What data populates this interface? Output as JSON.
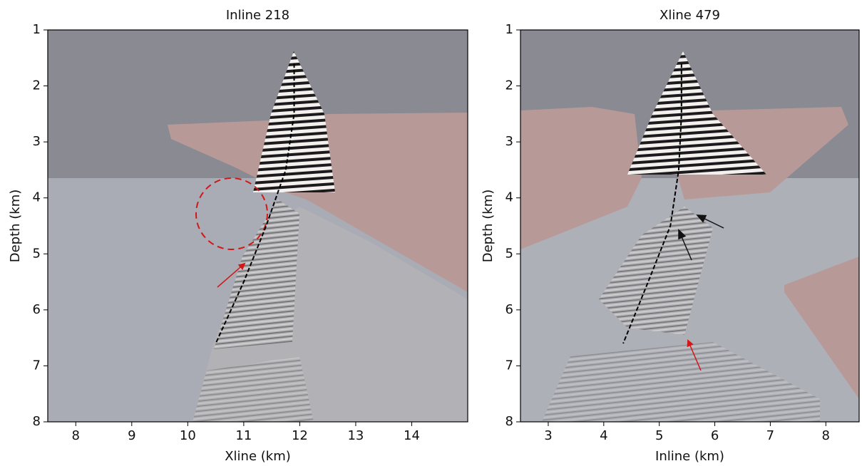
{
  "chart_data": [
    {
      "type": "image",
      "title": "Inline 218",
      "xlabel": "Xline (km)",
      "ylabel": "Depth (km)",
      "xlim": [
        7.5,
        15
      ],
      "ylim": [
        1,
        8
      ],
      "invert_y": true,
      "xticks": [
        8,
        9,
        10,
        11,
        12,
        13,
        14
      ],
      "yticks": [
        1,
        2,
        3,
        4,
        5,
        6,
        7,
        8
      ],
      "series": [
        {
          "color": "#000000",
          "dashed": true,
          "x": [
            11.9,
            11.9,
            11.75,
            11.4,
            11.0,
            10.5
          ],
          "values": [
            1.6,
            2.5,
            3.5,
            4.5,
            5.5,
            6.6
          ]
        }
      ]
    },
    {
      "type": "image",
      "title": "Xline 479",
      "xlabel": "Inline (km)",
      "ylabel": "Depth (km)",
      "xlim": [
        2.5,
        8.6
      ],
      "ylim": [
        1,
        8
      ],
      "invert_y": true,
      "xticks": [
        3,
        4,
        5,
        6,
        7,
        8
      ],
      "yticks": [
        1,
        2,
        3,
        4,
        5,
        6,
        7,
        8
      ],
      "series": [
        {
          "color": "#000000",
          "dashed": true,
          "x": [
            5.4,
            5.4,
            5.35,
            5.2,
            4.8,
            4.35
          ],
          "values": [
            1.6,
            2.5,
            3.5,
            4.5,
            5.5,
            6.6
          ]
        }
      ]
    }
  ]
}
